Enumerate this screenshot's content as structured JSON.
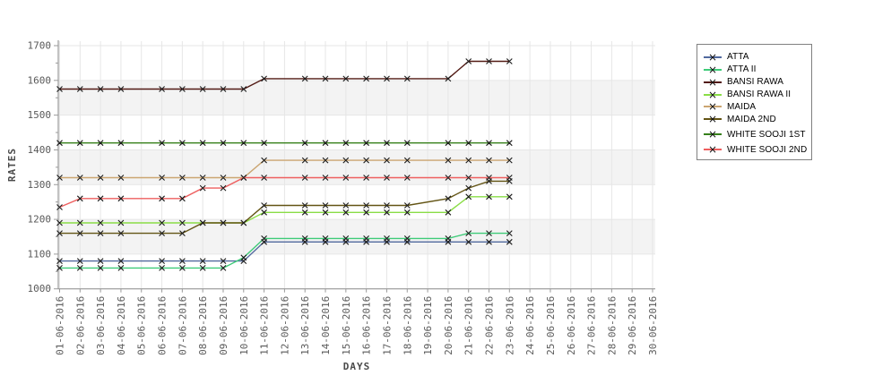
{
  "chart_data": {
    "type": "line",
    "title": "",
    "xlabel": "DAYS",
    "ylabel": "RATES",
    "x_categories": [
      "01-06-2016",
      "02-06-2016",
      "03-06-2016",
      "04-06-2016",
      "05-06-2016",
      "06-06-2016",
      "07-06-2016",
      "08-06-2016",
      "09-06-2016",
      "10-06-2016",
      "11-06-2016",
      "12-06-2016",
      "13-06-2016",
      "14-06-2016",
      "15-06-2016",
      "16-06-2016",
      "17-06-2016",
      "18-06-2016",
      "19-06-2016",
      "20-06-2016",
      "21-06-2016",
      "22-06-2016",
      "23-06-2016",
      "24-06-2016",
      "25-06-2016",
      "26-06-2016",
      "27-06-2016",
      "28-06-2016",
      "29-06-2016",
      "30-06-2016"
    ],
    "x_days_plotted": [
      1,
      2,
      3,
      4,
      6,
      7,
      8,
      9,
      10,
      11,
      13,
      14,
      15,
      16,
      17,
      18,
      20,
      21,
      22,
      23
    ],
    "ylim": [
      1000,
      1700
    ],
    "y_ticks": [
      1000,
      1100,
      1200,
      1300,
      1400,
      1500,
      1600,
      1700
    ],
    "shaded_bands": [
      [
        1100,
        1200
      ],
      [
        1300,
        1400
      ],
      [
        1500,
        1600
      ]
    ],
    "grid": "vertical gridline per day, faint horizontal lines at 100s",
    "marker": "x",
    "legend_position": "outside top-right",
    "series": [
      {
        "name": "ATTA",
        "color": "#51699e",
        "values": [
          1080,
          1080,
          1080,
          1080,
          1080,
          1080,
          1080,
          1080,
          1080,
          1135,
          1135,
          1135,
          1135,
          1135,
          1135,
          1135,
          1135,
          1135,
          1135,
          1135
        ]
      },
      {
        "name": "ATTA II",
        "color": "#3ecb78",
        "values": [
          1060,
          1060,
          1060,
          1060,
          1060,
          1060,
          1060,
          1060,
          1090,
          1145,
          1145,
          1145,
          1145,
          1145,
          1145,
          1145,
          1145,
          1160,
          1160,
          1160
        ]
      },
      {
        "name": "BANSI RAWA",
        "color": "#521a14",
        "values": [
          1575,
          1575,
          1575,
          1575,
          1575,
          1575,
          1575,
          1575,
          1575,
          1605,
          1605,
          1605,
          1605,
          1605,
          1605,
          1605,
          1605,
          1655,
          1655,
          1655
        ]
      },
      {
        "name": "BANSI RAWA II",
        "color": "#8add46",
        "values": [
          1190,
          1190,
          1190,
          1190,
          1190,
          1190,
          1190,
          1190,
          1190,
          1220,
          1220,
          1220,
          1220,
          1220,
          1220,
          1220,
          1220,
          1265,
          1265,
          1265
        ]
      },
      {
        "name": "MAIDA",
        "color": "#cba571",
        "values": [
          1320,
          1320,
          1320,
          1320,
          1320,
          1320,
          1320,
          1320,
          1320,
          1370,
          1370,
          1370,
          1370,
          1370,
          1370,
          1370,
          1370,
          1370,
          1370,
          1370
        ]
      },
      {
        "name": "MAIDA 2ND",
        "color": "#635414",
        "values": [
          1160,
          1160,
          1160,
          1160,
          1160,
          1160,
          1190,
          1190,
          1190,
          1240,
          1240,
          1240,
          1240,
          1240,
          1240,
          1240,
          1260,
          1290,
          1310,
          1310
        ]
      },
      {
        "name": "WHITE SOOJI 1ST",
        "color": "#36801a",
        "values": [
          1420,
          1420,
          1420,
          1420,
          1420,
          1420,
          1420,
          1420,
          1420,
          1420,
          1420,
          1420,
          1420,
          1420,
          1420,
          1420,
          1420,
          1420,
          1420,
          1420
        ]
      },
      {
        "name": "WHITE SOOJI 2ND",
        "color": "#ee5f5f",
        "values": [
          1235,
          1260,
          1260,
          1260,
          1260,
          1260,
          1290,
          1290,
          1320,
          1320,
          1320,
          1320,
          1320,
          1320,
          1320,
          1320,
          1320,
          1320,
          1320,
          1320
        ]
      }
    ]
  },
  "colors": {
    "background": "#ffffff",
    "band": "#f3f3f3",
    "gridline": "#e6e6e6",
    "axis": "#9a9a9a",
    "tick_label": "#595959",
    "marker": "#1a1a1a",
    "legend_border": "#808080"
  }
}
